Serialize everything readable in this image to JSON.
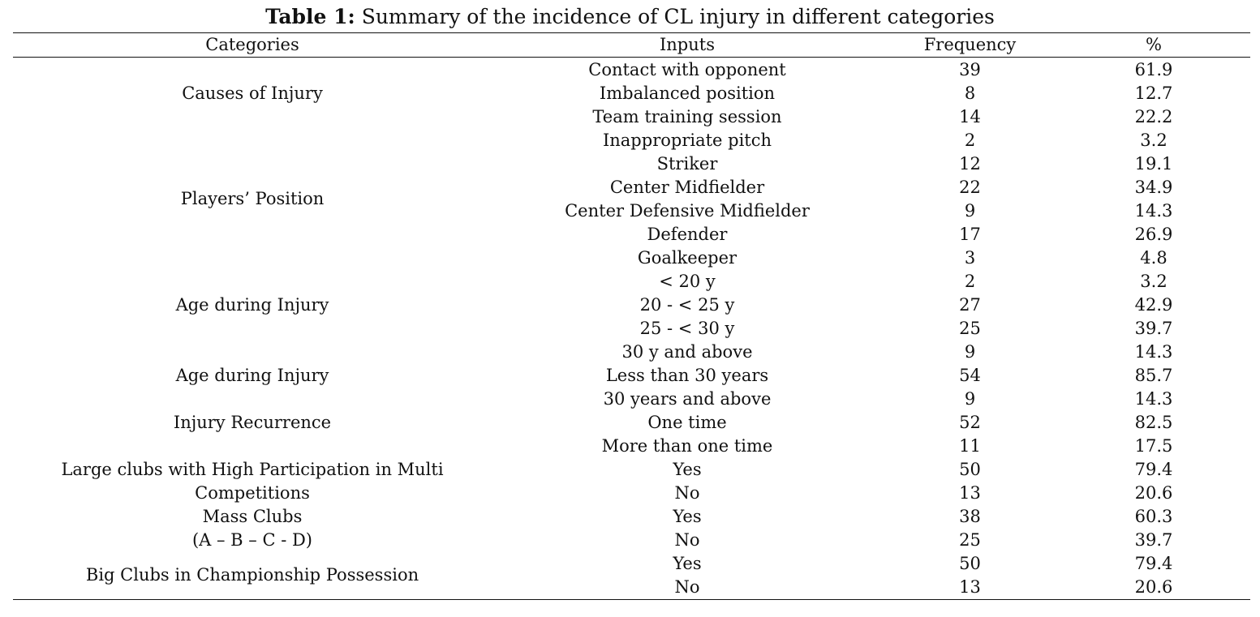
{
  "caption": {
    "label": "Table 1:",
    "text": "Summary of the incidence of CL injury in different categories"
  },
  "table": {
    "headers": [
      "Categories",
      "Inputs",
      "Frequency",
      "%"
    ],
    "categories": [
      "Causes of Injury",
      "Players’ Position",
      "Age during Injury",
      "Age during Injury",
      "Injury Recurrence",
      "Large clubs with High Participation in Multi",
      "Competitions",
      "Mass Clubs",
      "(A – B – C - D)",
      "Big Clubs in Championship Possession"
    ],
    "rows": [
      {
        "input": "Contact with opponent",
        "frequency": "39",
        "percent": "61.9"
      },
      {
        "input": "Imbalanced position",
        "frequency": "8",
        "percent": "12.7"
      },
      {
        "input": "Team training session",
        "frequency": "14",
        "percent": "22.2"
      },
      {
        "input": "Inappropriate pitch",
        "frequency": "2",
        "percent": "3.2"
      },
      {
        "input": "Striker",
        "frequency": "12",
        "percent": "19.1"
      },
      {
        "input": "Center Midfielder",
        "frequency": "22",
        "percent": "34.9"
      },
      {
        "input": "Center Defensive Midfielder",
        "frequency": "9",
        "percent": "14.3"
      },
      {
        "input": "Defender",
        "frequency": "17",
        "percent": "26.9"
      },
      {
        "input": "Goalkeeper",
        "frequency": "3",
        "percent": "4.8"
      },
      {
        "input": "< 20 y",
        "frequency": "2",
        "percent": "3.2"
      },
      {
        "input": "20 - < 25 y",
        "frequency": "27",
        "percent": "42.9"
      },
      {
        "input": "25 - < 30 y",
        "frequency": "25",
        "percent": "39.7"
      },
      {
        "input": "30 y and above",
        "frequency": "9",
        "percent": "14.3"
      },
      {
        "input": "Less than 30 years",
        "frequency": "54",
        "percent": "85.7"
      },
      {
        "input": "30 years and above",
        "frequency": "9",
        "percent": "14.3"
      },
      {
        "input": "One time",
        "frequency": "52",
        "percent": "82.5"
      },
      {
        "input": "More than one time",
        "frequency": "11",
        "percent": "17.5"
      },
      {
        "input": "Yes",
        "frequency": "50",
        "percent": "79.4"
      },
      {
        "input": "No",
        "frequency": "13",
        "percent": "20.6"
      },
      {
        "input": "Yes",
        "frequency": "38",
        "percent": "60.3"
      },
      {
        "input": "No",
        "frequency": "25",
        "percent": "39.7"
      },
      {
        "input": "Yes",
        "frequency": "50",
        "percent": "79.4"
      },
      {
        "input": "No",
        "frequency": "13",
        "percent": "20.6"
      }
    ]
  }
}
